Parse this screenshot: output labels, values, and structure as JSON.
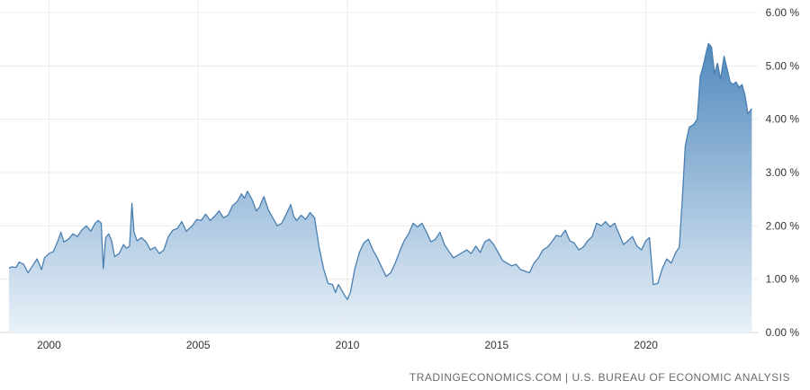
{
  "source_text": "TRADINGECONOMICS.COM | U.S. BUREAU OF ECONOMIC ANALYSIS",
  "chart_data": {
    "type": "area",
    "title": "",
    "xlabel": "",
    "ylabel": "",
    "xlim": [
      1998.6,
      2023.75
    ],
    "ylim": [
      0,
      6
    ],
    "grid": true,
    "legend": "none",
    "line_color": "#4a7fb0",
    "fill_top_color": "#5089bd",
    "fill_bottom_color": "#e9f1f8",
    "y_ticks": [
      {
        "value": 0,
        "label": "0.00 %"
      },
      {
        "value": 1,
        "label": "1.00 %"
      },
      {
        "value": 2,
        "label": "2.00 %"
      },
      {
        "value": 3,
        "label": "3.00 %"
      },
      {
        "value": 4,
        "label": "4.00 %"
      },
      {
        "value": 5,
        "label": "5.00 %"
      },
      {
        "value": 6,
        "label": "6.00 %"
      }
    ],
    "x_ticks": [
      {
        "value": 2000,
        "label": "2000"
      },
      {
        "value": 2005,
        "label": "2005"
      },
      {
        "value": 2010,
        "label": "2010"
      },
      {
        "value": 2015,
        "label": "2015"
      },
      {
        "value": 2020,
        "label": "2020"
      }
    ],
    "series": [
      {
        "values": [
          [
            1998.6,
            1.19
          ],
          [
            1998.75,
            1.23
          ],
          [
            1998.9,
            1.22
          ],
          [
            1999.0,
            1.32
          ],
          [
            1999.15,
            1.28
          ],
          [
            1999.3,
            1.12
          ],
          [
            1999.45,
            1.25
          ],
          [
            1999.6,
            1.38
          ],
          [
            1999.75,
            1.18
          ],
          [
            1999.85,
            1.4
          ],
          [
            2000.0,
            1.48
          ],
          [
            2000.15,
            1.52
          ],
          [
            2000.3,
            1.72
          ],
          [
            2000.4,
            1.88
          ],
          [
            2000.5,
            1.7
          ],
          [
            2000.65,
            1.75
          ],
          [
            2000.8,
            1.85
          ],
          [
            2000.95,
            1.8
          ],
          [
            2001.1,
            1.92
          ],
          [
            2001.25,
            2.0
          ],
          [
            2001.4,
            1.9
          ],
          [
            2001.55,
            2.05
          ],
          [
            2001.65,
            2.1
          ],
          [
            2001.75,
            2.05
          ],
          [
            2001.82,
            1.2
          ],
          [
            2001.9,
            1.78
          ],
          [
            2002.0,
            1.85
          ],
          [
            2002.1,
            1.72
          ],
          [
            2002.2,
            1.42
          ],
          [
            2002.35,
            1.48
          ],
          [
            2002.5,
            1.65
          ],
          [
            2002.6,
            1.58
          ],
          [
            2002.7,
            1.62
          ],
          [
            2002.78,
            2.42
          ],
          [
            2002.85,
            1.88
          ],
          [
            2002.95,
            1.72
          ],
          [
            2003.1,
            1.78
          ],
          [
            2003.25,
            1.7
          ],
          [
            2003.4,
            1.55
          ],
          [
            2003.55,
            1.6
          ],
          [
            2003.7,
            1.48
          ],
          [
            2003.85,
            1.55
          ],
          [
            2004.0,
            1.8
          ],
          [
            2004.15,
            1.92
          ],
          [
            2004.3,
            1.95
          ],
          [
            2004.45,
            2.08
          ],
          [
            2004.6,
            1.9
          ],
          [
            2004.8,
            2.0
          ],
          [
            2004.95,
            2.12
          ],
          [
            2005.1,
            2.1
          ],
          [
            2005.25,
            2.22
          ],
          [
            2005.4,
            2.1
          ],
          [
            2005.55,
            2.18
          ],
          [
            2005.7,
            2.28
          ],
          [
            2005.85,
            2.15
          ],
          [
            2006.0,
            2.2
          ],
          [
            2006.15,
            2.38
          ],
          [
            2006.3,
            2.45
          ],
          [
            2006.45,
            2.6
          ],
          [
            2006.55,
            2.52
          ],
          [
            2006.65,
            2.65
          ],
          [
            2006.8,
            2.5
          ],
          [
            2006.95,
            2.28
          ],
          [
            2007.05,
            2.35
          ],
          [
            2007.2,
            2.55
          ],
          [
            2007.35,
            2.3
          ],
          [
            2007.5,
            2.15
          ],
          [
            2007.65,
            2.0
          ],
          [
            2007.8,
            2.05
          ],
          [
            2007.95,
            2.22
          ],
          [
            2008.1,
            2.4
          ],
          [
            2008.2,
            2.18
          ],
          [
            2008.3,
            2.1
          ],
          [
            2008.45,
            2.2
          ],
          [
            2008.6,
            2.12
          ],
          [
            2008.75,
            2.25
          ],
          [
            2008.9,
            2.15
          ],
          [
            2009.05,
            1.6
          ],
          [
            2009.2,
            1.2
          ],
          [
            2009.35,
            0.92
          ],
          [
            2009.5,
            0.9
          ],
          [
            2009.6,
            0.75
          ],
          [
            2009.7,
            0.9
          ],
          [
            2009.8,
            0.8
          ],
          [
            2009.9,
            0.7
          ],
          [
            2010.0,
            0.62
          ],
          [
            2010.1,
            0.75
          ],
          [
            2010.25,
            1.2
          ],
          [
            2010.4,
            1.5
          ],
          [
            2010.55,
            1.68
          ],
          [
            2010.7,
            1.75
          ],
          [
            2010.85,
            1.55
          ],
          [
            2011.0,
            1.4
          ],
          [
            2011.15,
            1.22
          ],
          [
            2011.3,
            1.05
          ],
          [
            2011.45,
            1.12
          ],
          [
            2011.6,
            1.3
          ],
          [
            2011.75,
            1.52
          ],
          [
            2011.9,
            1.72
          ],
          [
            2012.05,
            1.85
          ],
          [
            2012.2,
            2.05
          ],
          [
            2012.35,
            1.98
          ],
          [
            2012.5,
            2.05
          ],
          [
            2012.65,
            1.88
          ],
          [
            2012.8,
            1.7
          ],
          [
            2012.95,
            1.75
          ],
          [
            2013.1,
            1.88
          ],
          [
            2013.25,
            1.65
          ],
          [
            2013.4,
            1.52
          ],
          [
            2013.55,
            1.4
          ],
          [
            2013.7,
            1.45
          ],
          [
            2013.85,
            1.5
          ],
          [
            2014.0,
            1.55
          ],
          [
            2014.15,
            1.48
          ],
          [
            2014.3,
            1.62
          ],
          [
            2014.45,
            1.5
          ],
          [
            2014.6,
            1.7
          ],
          [
            2014.75,
            1.75
          ],
          [
            2014.9,
            1.65
          ],
          [
            2015.05,
            1.5
          ],
          [
            2015.2,
            1.35
          ],
          [
            2015.35,
            1.3
          ],
          [
            2015.5,
            1.25
          ],
          [
            2015.65,
            1.28
          ],
          [
            2015.8,
            1.18
          ],
          [
            2015.95,
            1.15
          ],
          [
            2016.1,
            1.12
          ],
          [
            2016.25,
            1.3
          ],
          [
            2016.4,
            1.4
          ],
          [
            2016.55,
            1.55
          ],
          [
            2016.7,
            1.6
          ],
          [
            2016.85,
            1.7
          ],
          [
            2017.0,
            1.82
          ],
          [
            2017.15,
            1.8
          ],
          [
            2017.3,
            1.92
          ],
          [
            2017.45,
            1.72
          ],
          [
            2017.6,
            1.68
          ],
          [
            2017.75,
            1.55
          ],
          [
            2017.9,
            1.6
          ],
          [
            2018.05,
            1.72
          ],
          [
            2018.2,
            1.8
          ],
          [
            2018.35,
            2.05
          ],
          [
            2018.5,
            2.0
          ],
          [
            2018.65,
            2.08
          ],
          [
            2018.8,
            1.98
          ],
          [
            2018.95,
            2.05
          ],
          [
            2019.1,
            1.85
          ],
          [
            2019.25,
            1.65
          ],
          [
            2019.4,
            1.72
          ],
          [
            2019.55,
            1.8
          ],
          [
            2019.7,
            1.62
          ],
          [
            2019.85,
            1.55
          ],
          [
            2020.0,
            1.72
          ],
          [
            2020.12,
            1.78
          ],
          [
            2020.25,
            0.9
          ],
          [
            2020.4,
            0.92
          ],
          [
            2020.55,
            1.2
          ],
          [
            2020.7,
            1.38
          ],
          [
            2020.85,
            1.3
          ],
          [
            2021.0,
            1.5
          ],
          [
            2021.12,
            1.6
          ],
          [
            2021.22,
            2.5
          ],
          [
            2021.32,
            3.5
          ],
          [
            2021.45,
            3.85
          ],
          [
            2021.6,
            3.9
          ],
          [
            2021.72,
            4.0
          ],
          [
            2021.82,
            4.8
          ],
          [
            2021.92,
            5.0
          ],
          [
            2022.02,
            5.25
          ],
          [
            2022.1,
            5.42
          ],
          [
            2022.2,
            5.35
          ],
          [
            2022.3,
            4.85
          ],
          [
            2022.4,
            5.05
          ],
          [
            2022.5,
            4.75
          ],
          [
            2022.62,
            5.18
          ],
          [
            2022.72,
            4.95
          ],
          [
            2022.82,
            4.7
          ],
          [
            2022.92,
            4.65
          ],
          [
            2023.02,
            4.7
          ],
          [
            2023.12,
            4.6
          ],
          [
            2023.22,
            4.65
          ],
          [
            2023.32,
            4.45
          ],
          [
            2023.42,
            4.1
          ],
          [
            2023.55,
            4.2
          ]
        ]
      }
    ]
  }
}
